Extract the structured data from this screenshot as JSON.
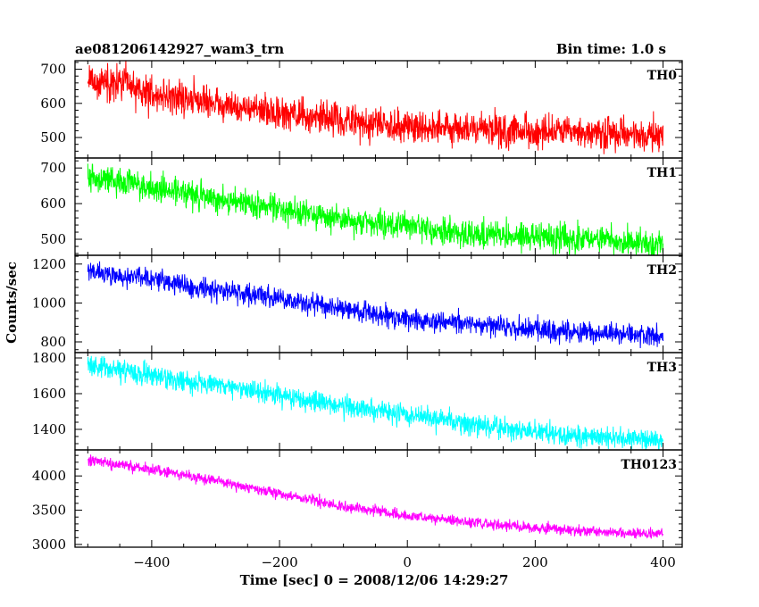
{
  "header": {
    "title": "ae081206142927_wam3_trn",
    "bin_time": "Bin time: 1.0 s"
  },
  "chart_data": {
    "type": "line",
    "title": "ae081206142927_wam3_trn",
    "subtitle": "Bin time: 1.0 s",
    "xlabel": "Time [sec] 0 = 2008/12/06 14:29:27",
    "ylabel": "Counts/sec",
    "xlim": [
      -520,
      430
    ],
    "x_range": [
      -500,
      400
    ],
    "x_ticks": [
      -400,
      -200,
      0,
      200,
      400
    ],
    "x_tick_labels": [
      "−400",
      "−200",
      "0",
      "200",
      "400"
    ],
    "bin_seconds": 1.0,
    "grid": false,
    "series": [
      {
        "name": "TH0",
        "color": "#ff0000",
        "ylim": [
          440,
          725
        ],
        "y_ticks": [
          500,
          600,
          700
        ],
        "y_tick_labels": [
          "500",
          "600",
          "700"
        ],
        "trend": [
          [
            -500,
            665
          ],
          [
            -450,
            660
          ],
          [
            -400,
            628
          ],
          [
            -300,
            600
          ],
          [
            -200,
            570
          ],
          [
            -100,
            550
          ],
          [
            0,
            535
          ],
          [
            100,
            525
          ],
          [
            200,
            515
          ],
          [
            300,
            510
          ],
          [
            400,
            505
          ]
        ],
        "noise_amplitude": 45
      },
      {
        "name": "TH1",
        "color": "#00ff00",
        "ylim": [
          455,
          728
        ],
        "y_ticks": [
          500,
          600,
          700
        ],
        "y_tick_labels": [
          "500",
          "600",
          "700"
        ],
        "trend": [
          [
            -500,
            670
          ],
          [
            -450,
            665
          ],
          [
            -400,
            645
          ],
          [
            -300,
            615
          ],
          [
            -200,
            585
          ],
          [
            -100,
            555
          ],
          [
            0,
            535
          ],
          [
            100,
            515
          ],
          [
            200,
            505
          ],
          [
            300,
            498
          ],
          [
            400,
            490
          ]
        ],
        "noise_amplitude": 35
      },
      {
        "name": "TH2",
        "color": "#0000ff",
        "ylim": [
          745,
          1245
        ],
        "y_ticks": [
          800,
          1000,
          1200
        ],
        "y_tick_labels": [
          "800",
          "1000",
          "1200"
        ],
        "trend": [
          [
            -500,
            1160
          ],
          [
            -400,
            1120
          ],
          [
            -300,
            1070
          ],
          [
            -200,
            1020
          ],
          [
            -100,
            970
          ],
          [
            0,
            920
          ],
          [
            100,
            890
          ],
          [
            200,
            865
          ],
          [
            300,
            845
          ],
          [
            400,
            830
          ]
        ],
        "noise_amplitude": 50
      },
      {
        "name": "TH3",
        "color": "#00ffff",
        "ylim": [
          1285,
          1830
        ],
        "y_ticks": [
          1400,
          1600,
          1800
        ],
        "y_tick_labels": [
          "1400",
          "1600",
          "1800"
        ],
        "trend": [
          [
            -500,
            1760
          ],
          [
            -400,
            1700
          ],
          [
            -300,
            1650
          ],
          [
            -200,
            1590
          ],
          [
            -100,
            1530
          ],
          [
            0,
            1480
          ],
          [
            100,
            1430
          ],
          [
            200,
            1385
          ],
          [
            300,
            1355
          ],
          [
            400,
            1340
          ]
        ],
        "noise_amplitude": 55
      },
      {
        "name": "TH0123",
        "color": "#ff00ff",
        "ylim": [
          2960,
          4380
        ],
        "y_ticks": [
          3000,
          3500,
          4000
        ],
        "y_tick_labels": [
          "3000",
          "3500",
          "4000"
        ],
        "trend": [
          [
            -500,
            4230
          ],
          [
            -400,
            4090
          ],
          [
            -300,
            3930
          ],
          [
            -200,
            3740
          ],
          [
            -100,
            3560
          ],
          [
            0,
            3420
          ],
          [
            100,
            3320
          ],
          [
            200,
            3240
          ],
          [
            300,
            3190
          ],
          [
            400,
            3150
          ]
        ],
        "noise_amplitude": 70
      }
    ]
  }
}
